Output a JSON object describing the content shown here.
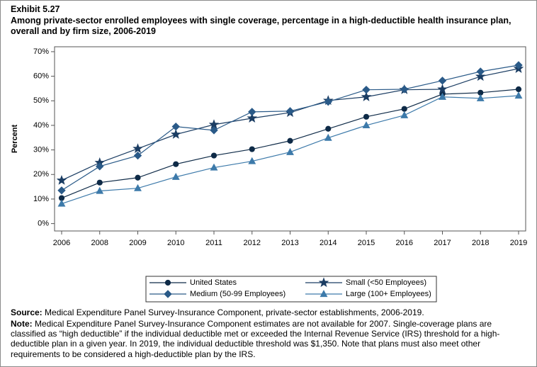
{
  "exhibit": "Exhibit 5.27",
  "source_label": "Source:",
  "source": "Medical Expenditure Panel Survey-Insurance Component, private-sector establishments, 2006-2019.",
  "note_label": "Note:",
  "note": "Medical Expenditure Panel Survey-Insurance Component estimates are not available for 2007. Single-coverage plans are classified as “high deductible” if the individual deductible met or exceeded the Internal Revenue Service (IRS) threshold for a high-deductible plan in a given year. In 2019, the individual deductible threshold was $1,350. Note that plans must also meet other requirements to be considered a high-deductible plan by the IRS.",
  "chart_data": {
    "type": "line",
    "title": "Among private-sector enrolled employees with single coverage, percentage in a high-deductible health insurance plan, overall and by firm size, 2006-2019",
    "y_label": "Percent",
    "categories": [
      "2006",
      "2008",
      "2009",
      "2010",
      "2011",
      "2012",
      "2013",
      "2014",
      "2015",
      "2016",
      "2017",
      "2018",
      "2019"
    ],
    "ylim": [
      -3,
      72
    ],
    "yticks": [
      {
        "value": 0,
        "label": "0%"
      },
      {
        "value": 10,
        "label": "10%"
      },
      {
        "value": 20,
        "label": "20%"
      },
      {
        "value": 30,
        "label": "30%"
      },
      {
        "value": 40,
        "label": "40%"
      },
      {
        "value": 50,
        "label": "50%"
      },
      {
        "value": 60,
        "label": "60%"
      },
      {
        "value": 70,
        "label": "70%"
      }
    ],
    "series": [
      {
        "name": "United States",
        "color": "#0e2a47",
        "marker": "circle",
        "values": [
          10.4,
          16.7,
          18.7,
          24.2,
          27.7,
          30.3,
          33.7,
          38.6,
          43.5,
          46.7,
          52.7,
          53.3,
          54.7
        ]
      },
      {
        "name": "Small (<50 Employees)",
        "color": "#1b3d63",
        "marker": "star",
        "values": [
          17.6,
          24.8,
          30.5,
          36.3,
          40.3,
          42.9,
          45.2,
          50.1,
          51.6,
          54.5,
          54.7,
          59.9,
          63.1
        ]
      },
      {
        "name": "Medium (50-99 Employees)",
        "color": "#2a5a88",
        "marker": "diamond",
        "values": [
          13.5,
          23.3,
          27.7,
          39.5,
          38.0,
          45.5,
          45.8,
          49.6,
          54.5,
          54.7,
          58.2,
          61.9,
          64.5
        ]
      },
      {
        "name": "Large (100+ Employees)",
        "color": "#3d7aaa",
        "marker": "triangle",
        "values": [
          8.1,
          13.3,
          14.4,
          19.0,
          22.8,
          25.4,
          29.1,
          34.9,
          40.0,
          44.1,
          51.6,
          51.0,
          52.1
        ]
      }
    ]
  }
}
